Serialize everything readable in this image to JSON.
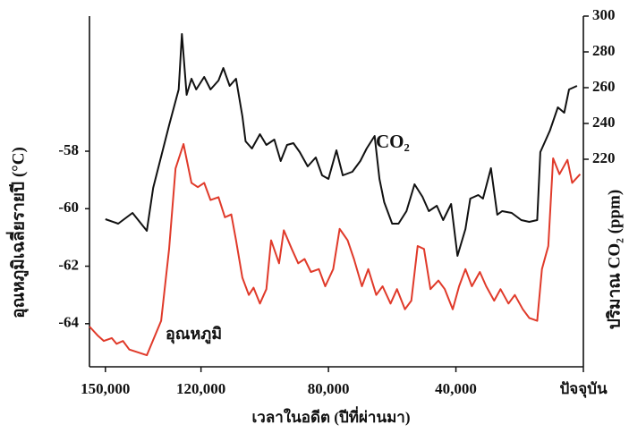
{
  "chart_data": {
    "type": "line",
    "xlabel": "เวลาในอดีต (ปีที่ผ่านมา)",
    "ylabel": "อุณหภูมิเฉลี่ยรายปี (°C)",
    "y2label": "ปริมาณ CO₂ (ppm)",
    "xlim": [
      155000,
      0
    ],
    "xticks": [
      {
        "value": 150000,
        "label": "150,000"
      },
      {
        "value": 120000,
        "label": "120,000"
      },
      {
        "value": 80000,
        "label": "80,000"
      },
      {
        "value": 40000,
        "label": "40,000"
      },
      {
        "value": 0,
        "label": "ปัจจุบัน"
      }
    ],
    "ylim": [
      -65.5,
      -53.3
    ],
    "yticks": [
      -58,
      -60,
      -62,
      -64
    ],
    "y2lim": [
      104,
      300
    ],
    "y2ticks": [
      220,
      240,
      260,
      280,
      300
    ],
    "series": [
      {
        "name": "CO₂",
        "color": "#111111",
        "axis": "y2",
        "x": [
          150000,
          146000,
          141500,
          137000,
          135000,
          130000,
          127000,
          126000,
          124500,
          123000,
          121500,
          119000,
          117000,
          114500,
          113000,
          111000,
          109000,
          107000,
          106000,
          104000,
          101500,
          99500,
          97000,
          95000,
          93000,
          91000,
          89000,
          86500,
          84000,
          82000,
          80000,
          77500,
          75500,
          72500,
          70000,
          68000,
          65500,
          64000,
          62500,
          60000,
          58000,
          55500,
          53000,
          50500,
          48500,
          46000,
          44000,
          41500,
          39500,
          37000,
          35500,
          33000,
          31500,
          29000,
          27000,
          25500,
          22500,
          19500,
          17000,
          14500,
          13500,
          10500,
          8000,
          6000,
          4500,
          2000
        ],
        "values": [
          186.5,
          184,
          190,
          180,
          204,
          239,
          259,
          290,
          256,
          265,
          259,
          266,
          259,
          264,
          271,
          261,
          265,
          244,
          230,
          226,
          234,
          228,
          231,
          219,
          228,
          229,
          224,
          216,
          221,
          211,
          209,
          225,
          211,
          213,
          219,
          226,
          233,
          209,
          196,
          184,
          184,
          191,
          206,
          199,
          191,
          194,
          186,
          195,
          166,
          181,
          198,
          200,
          198,
          215,
          189,
          191,
          190,
          186,
          185,
          186,
          224,
          236,
          249,
          246,
          259,
          261
        ]
      },
      {
        "name": "อุณหภูมิ",
        "color": "#e03a2a",
        "axis": "y",
        "x": [
          155000,
          152500,
          150500,
          148000,
          146500,
          144500,
          142500,
          137000,
          132500,
          130000,
          128000,
          125500,
          123000,
          121000,
          119000,
          117000,
          114500,
          112500,
          110500,
          109000,
          107000,
          105000,
          103500,
          101500,
          99500,
          98000,
          95500,
          94000,
          91500,
          89500,
          87500,
          85500,
          83000,
          81000,
          78500,
          76500,
          74000,
          72000,
          69500,
          67500,
          65000,
          63000,
          60500,
          58500,
          56000,
          54000,
          52000,
          50000,
          48000,
          45500,
          43500,
          41000,
          39000,
          37000,
          35000,
          32500,
          30500,
          28000,
          26000,
          23500,
          21500,
          19000,
          17000,
          14500,
          13000,
          11000,
          9500,
          7500,
          5000,
          3500,
          1000
        ],
        "values": [
          -64.1,
          -64.4,
          -64.6,
          -64.5,
          -64.7,
          -64.6,
          -64.9,
          -65.1,
          -63.9,
          -61.4,
          -58.6,
          -57.75,
          -59.1,
          -59.25,
          -59.1,
          -59.7,
          -59.6,
          -60.3,
          -60.2,
          -61.1,
          -62.4,
          -63,
          -62.75,
          -63.3,
          -62.8,
          -61.1,
          -61.9,
          -60.75,
          -61.4,
          -61.9,
          -61.75,
          -62.2,
          -62.1,
          -62.7,
          -62.1,
          -60.7,
          -61.1,
          -61.75,
          -62.7,
          -62.1,
          -63,
          -62.7,
          -63.3,
          -62.8,
          -63.5,
          -63.2,
          -61.3,
          -61.4,
          -62.8,
          -62.5,
          -62.8,
          -63.5,
          -62.7,
          -62.1,
          -62.7,
          -62.2,
          -62.7,
          -63.2,
          -62.8,
          -63.3,
          -63,
          -63.5,
          -63.8,
          -63.9,
          -62.1,
          -61.3,
          -58.25,
          -58.8,
          -58.3,
          -59.1,
          -58.8
        ]
      }
    ]
  }
}
